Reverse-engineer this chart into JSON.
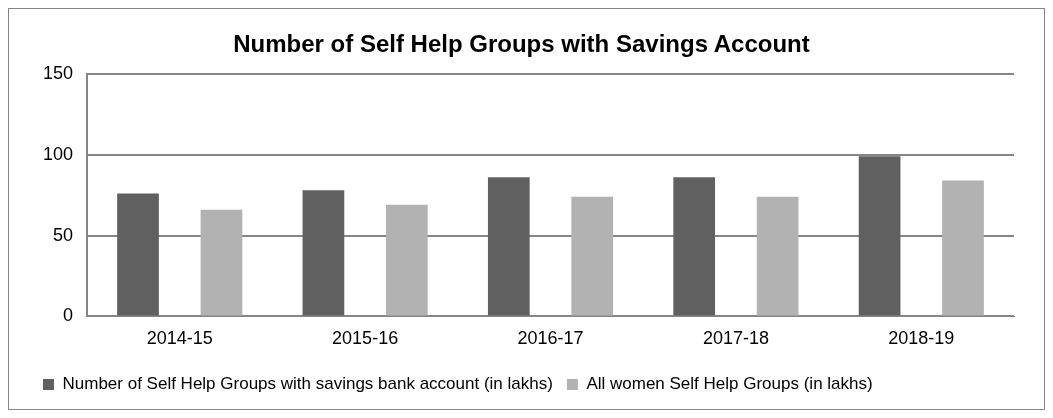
{
  "chart_data": {
    "type": "bar",
    "title": "Number of Self Help Groups with Savings Account",
    "categories": [
      "2014-15",
      "2015-16",
      "2016-17",
      "2017-18",
      "2018-19"
    ],
    "series": [
      {
        "name": "Number of Self Help Groups with savings bank account (in lakhs)",
        "color": "#606060",
        "values": [
          76,
          78,
          86,
          86,
          99
        ]
      },
      {
        "name": "All women Self Help Groups (in lakhs)",
        "color": "#b2b2b2",
        "values": [
          66,
          69,
          74,
          74,
          84
        ]
      }
    ],
    "ylim": [
      0,
      150
    ],
    "yticks": [
      0,
      50,
      100,
      150
    ],
    "grid": "y",
    "legend": "bottom"
  }
}
